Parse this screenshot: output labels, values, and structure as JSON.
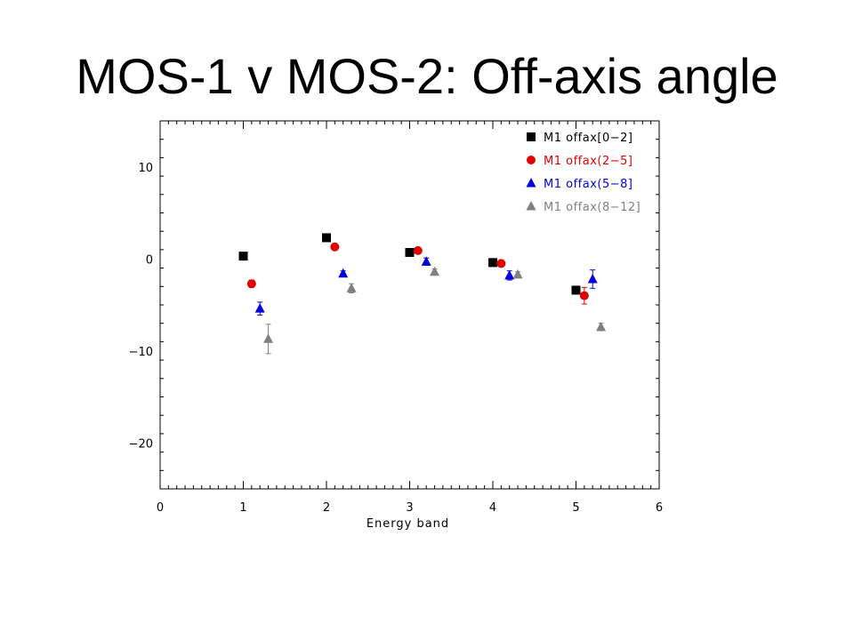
{
  "slide": {
    "title": "MOS-1 v MOS-2: Off-axis angle"
  },
  "chart_data": {
    "type": "scatter",
    "xlabel": "Energy band",
    "ylabel": "",
    "xlim": [
      0,
      6
    ],
    "ylim": [
      -25,
      15
    ],
    "xticks": [
      0,
      1,
      2,
      3,
      4,
      5,
      6
    ],
    "yticks": [
      10,
      0,
      -10,
      -20
    ],
    "ytick_labels": [
      "10",
      "0",
      "−10",
      "−20"
    ],
    "grid": false,
    "legend": "top-right",
    "series": [
      {
        "name": "M1 offax[0−2]",
        "color": "#000000",
        "marker": "square",
        "points": [
          {
            "x": 1.0,
            "y": 0.3,
            "err": 0
          },
          {
            "x": 2.0,
            "y": 2.3,
            "err": 0
          },
          {
            "x": 3.0,
            "y": 0.7,
            "err": 0
          },
          {
            "x": 4.0,
            "y": -0.4,
            "err": 0
          },
          {
            "x": 5.0,
            "y": -3.4,
            "err": 0
          }
        ]
      },
      {
        "name": "M1 offax(2−5]",
        "color": "#e00000",
        "marker": "circle",
        "points": [
          {
            "x": 1.1,
            "y": -2.7,
            "err": 0.4
          },
          {
            "x": 2.1,
            "y": 1.3,
            "err": 0.2
          },
          {
            "x": 3.1,
            "y": 0.9,
            "err": 0.2
          },
          {
            "x": 4.1,
            "y": -0.5,
            "err": 0.2
          },
          {
            "x": 5.1,
            "y": -4.0,
            "err": 0.9
          }
        ]
      },
      {
        "name": "M1 offax(5−8]",
        "color": "#0000e0",
        "marker": "triangle",
        "points": [
          {
            "x": 1.2,
            "y": -5.4,
            "err": 0.7
          },
          {
            "x": 2.2,
            "y": -1.6,
            "err": 0.3
          },
          {
            "x": 3.2,
            "y": -0.3,
            "err": 0.4
          },
          {
            "x": 4.2,
            "y": -1.8,
            "err": 0.5
          },
          {
            "x": 5.2,
            "y": -2.2,
            "err": 1.0
          }
        ]
      },
      {
        "name": "M1 offax(8−12]",
        "color": "#808080",
        "marker": "triangle",
        "points": [
          {
            "x": 1.3,
            "y": -8.7,
            "err": 1.6
          },
          {
            "x": 2.3,
            "y": -3.2,
            "err": 0.5
          },
          {
            "x": 3.3,
            "y": -1.4,
            "err": 0.3
          },
          {
            "x": 4.3,
            "y": -1.7,
            "err": 0.3
          },
          {
            "x": 5.3,
            "y": -7.4,
            "err": 0.4
          }
        ]
      }
    ]
  }
}
